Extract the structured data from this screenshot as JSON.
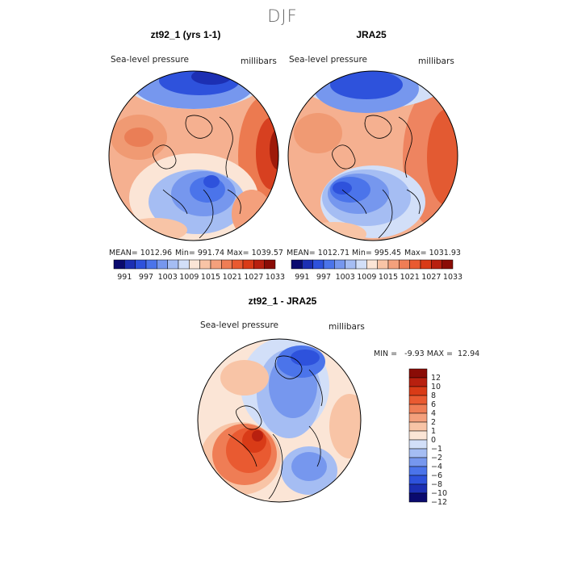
{
  "season": "DJF",
  "panels": [
    {
      "title": "zt92_1 (yrs 1-1)",
      "variable": "Sea-level pressure",
      "units": "millibars",
      "mean": "MEAN= 1012.96",
      "min": "Min= 991.74",
      "max": "Max= 1039.57"
    },
    {
      "title": "JRA25",
      "variable": "Sea-level pressure",
      "units": "millibars",
      "mean": "MEAN= 1012.71",
      "min": "Min= 995.45",
      "max": "Max= 1031.93"
    }
  ],
  "diff": {
    "title": "zt92_1 - JRA25",
    "variable": "Sea-level pressure",
    "units": "millibars",
    "minmax": "MIN =   -9.93 MAX =  12.94"
  },
  "colorbar_abs": {
    "colors": [
      "#0a0a6e",
      "#1c2fb3",
      "#2e52dc",
      "#4b74ea",
      "#7697ee",
      "#a5bdf3",
      "#d2dff8",
      "#fbe5d6",
      "#f8c4a6",
      "#f4a07c",
      "#ef7d55",
      "#e95a31",
      "#d93b17",
      "#b8200f",
      "#8a0c06"
    ],
    "labels": [
      "991",
      "997",
      "1003",
      "1009",
      "1015",
      "1021",
      "1027",
      "1033"
    ]
  },
  "colorbar_diff": {
    "colors": [
      "#0a0a6e",
      "#1c2fb3",
      "#2e52dc",
      "#4b74ea",
      "#7697ee",
      "#a5bdf3",
      "#d2dff8",
      "#fbe5d6",
      "#f8c4a6",
      "#f4a07c",
      "#ef7d55",
      "#e95a31",
      "#d93b17",
      "#b8200f",
      "#8a0c06"
    ],
    "labels": [
      "12",
      "10",
      "8",
      "6",
      "4",
      "2",
      "1",
      "0",
      "−1",
      "−2",
      "−4",
      "−6",
      "−8",
      "−10",
      "−12"
    ]
  }
}
